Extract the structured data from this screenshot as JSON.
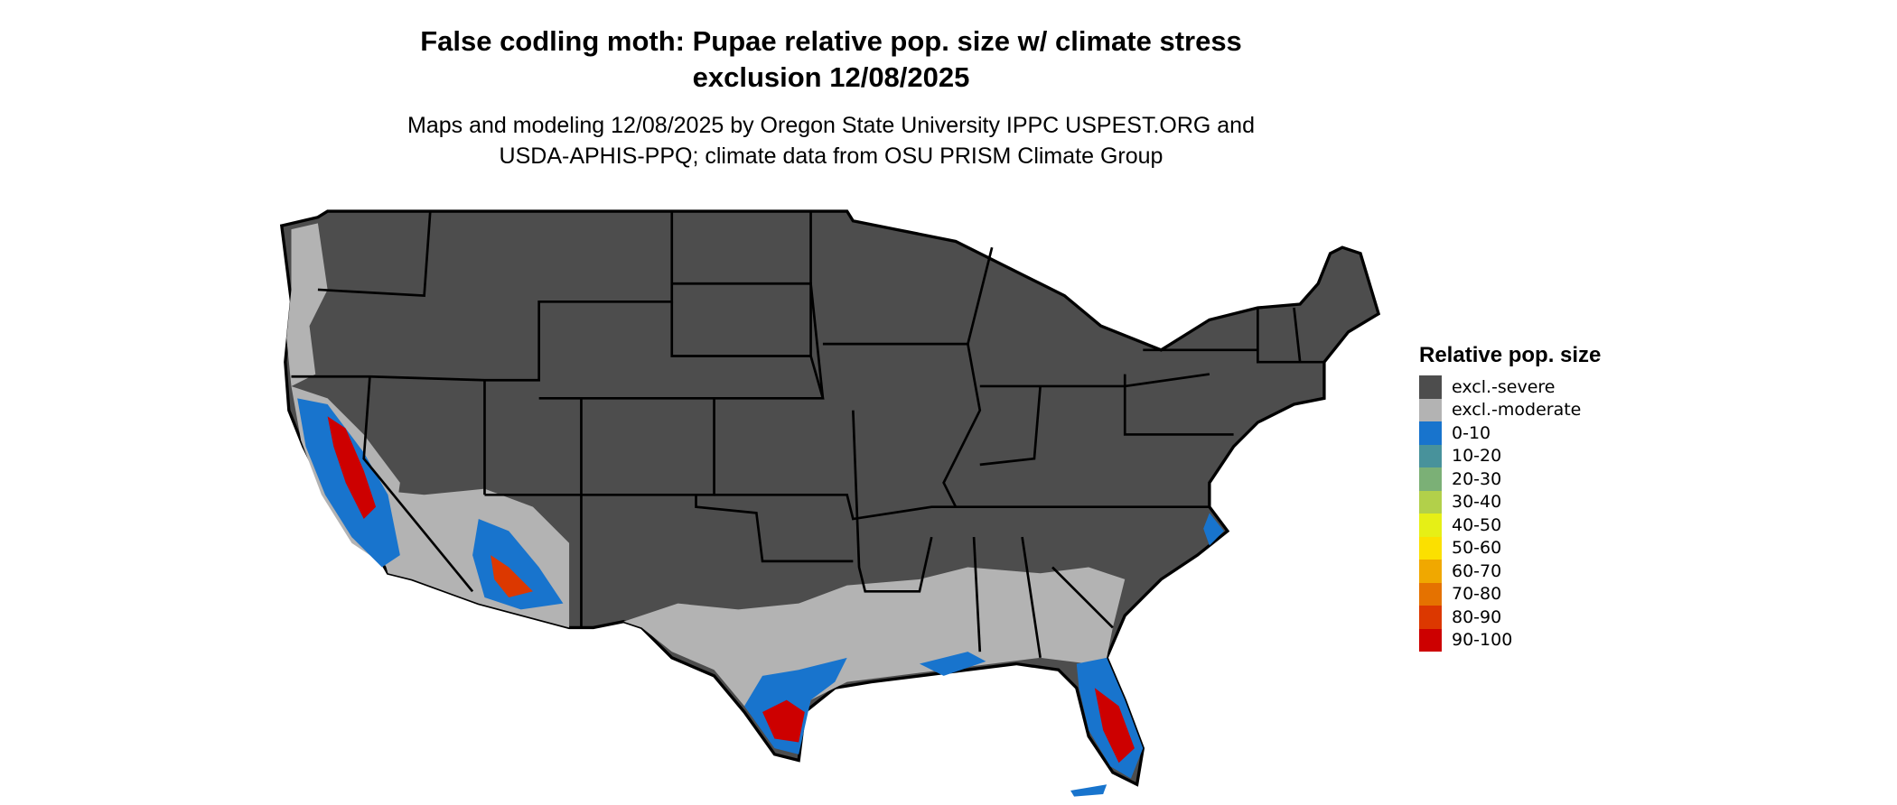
{
  "title_line1": "False codling moth: Pupae relative pop. size w/ climate stress",
  "title_line2": "exclusion 12/08/2025",
  "subtitle_line1": "Maps and modeling 12/08/2025 by Oregon State University IPPC USPEST.ORG and",
  "subtitle_line2": "USDA-APHIS-PPQ; climate data from OSU PRISM Climate Group",
  "legend": {
    "title": "Relative pop. size",
    "items": [
      {
        "label": "excl.-severe",
        "color": "#4d4d4d"
      },
      {
        "label": "excl.-moderate",
        "color": "#b3b3b3"
      },
      {
        "label": "0-10",
        "color": "#1874cd"
      },
      {
        "label": "10-20",
        "color": "#48929b"
      },
      {
        "label": "20-30",
        "color": "#7bb076"
      },
      {
        "label": "30-40",
        "color": "#b2d04a"
      },
      {
        "label": "40-50",
        "color": "#e6ef16"
      },
      {
        "label": "50-60",
        "color": "#fbe000"
      },
      {
        "label": "60-70",
        "color": "#f0a800"
      },
      {
        "label": "70-80",
        "color": "#e57200"
      },
      {
        "label": "80-90",
        "color": "#dc3800"
      },
      {
        "label": "90-100",
        "color": "#cd0000"
      }
    ]
  }
}
